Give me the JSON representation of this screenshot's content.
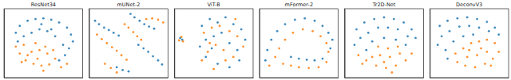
{
  "chart_data": [
    {
      "type": "scatter",
      "title": "ResNet34",
      "xlim": [
        -100,
        100
      ],
      "ylim": [
        -100,
        100
      ],
      "tick_labels": false,
      "marker": "circle",
      "series": [
        {
          "color": "#1f77b4",
          "x": [
            -60,
            -40,
            -20,
            0,
            20,
            40,
            60,
            70,
            75,
            65,
            50,
            30,
            10,
            -10,
            -30,
            -50,
            -65,
            -70,
            55,
            40,
            20,
            -5
          ],
          "values": [
            50,
            65,
            70,
            72,
            68,
            60,
            45,
            25,
            5,
            -15,
            -5,
            20,
            35,
            40,
            30,
            20,
            5,
            30,
            -35,
            -50,
            40,
            55
          ]
        },
        {
          "color": "#ff7f0e",
          "x": [
            -70,
            -60,
            -45,
            -25,
            -5,
            15,
            30,
            10,
            -10,
            -30,
            -50,
            -40,
            -15,
            5,
            25,
            45,
            -55,
            -20,
            0,
            60
          ],
          "values": [
            -10,
            -30,
            -50,
            -60,
            -65,
            -62,
            -45,
            -30,
            -20,
            -25,
            -5,
            -35,
            -45,
            -10,
            -20,
            -70,
            -55,
            0,
            -80,
            -60
          ]
        }
      ]
    },
    {
      "type": "scatter",
      "title": "mUNet-2",
      "xlim": [
        -100,
        100
      ],
      "ylim": [
        -100,
        100
      ],
      "tick_labels": false,
      "marker": "circle",
      "series": [
        {
          "color": "#1f77b4",
          "x": [
            -85,
            -75,
            -62,
            -50,
            -38,
            -25,
            5,
            15,
            28,
            40,
            52,
            65,
            25,
            38,
            50,
            62,
            75,
            85,
            -30,
            -15,
            0
          ],
          "values": [
            65,
            55,
            45,
            38,
            30,
            22,
            85,
            75,
            65,
            55,
            48,
            42,
            -5,
            -15,
            -25,
            -38,
            -50,
            -62,
            -70,
            -78,
            -82
          ]
        },
        {
          "color": "#ff7f0e",
          "x": [
            -80,
            -68,
            -55,
            -42,
            -30,
            -18,
            -5,
            -10,
            0,
            12,
            22,
            32,
            45,
            60,
            75,
            88,
            -60,
            -45,
            -30
          ],
          "values": [
            25,
            12,
            0,
            -12,
            -22,
            -35,
            -48,
            55,
            45,
            32,
            20,
            10,
            70,
            72,
            68,
            60,
            -60,
            -72,
            -85
          ]
        }
      ]
    },
    {
      "type": "scatter",
      "title": "ViT-B",
      "xlim": [
        -100,
        100
      ],
      "ylim": [
        -100,
        100
      ],
      "tick_labels": false,
      "marker": "circle",
      "series": [
        {
          "color": "#1f77b4",
          "x": [
            -85,
            -80,
            -30,
            -10,
            10,
            30,
            50,
            70,
            80,
            60,
            40,
            20,
            0,
            -20,
            -35,
            -20,
            10,
            40,
            65,
            -5
          ],
          "values": [
            15,
            10,
            50,
            70,
            60,
            75,
            55,
            40,
            10,
            -20,
            0,
            30,
            20,
            10,
            -10,
            -40,
            -60,
            -70,
            -50,
            -15
          ]
        },
        {
          "color": "#ff7f0e",
          "x": [
            -88,
            -82,
            -78,
            -25,
            -5,
            15,
            40,
            60,
            75,
            50,
            25,
            5,
            -15,
            -30,
            0,
            30,
            55,
            -10
          ],
          "values": [
            8,
            18,
            5,
            30,
            45,
            50,
            35,
            20,
            -10,
            -40,
            -20,
            -5,
            -25,
            -50,
            -75,
            -50,
            70,
            0
          ]
        }
      ]
    },
    {
      "type": "scatter",
      "title": "mFormer-2",
      "xlim": [
        -100,
        100
      ],
      "ylim": [
        -100,
        100
      ],
      "tick_labels": false,
      "marker": "circle",
      "series": [
        {
          "color": "#1f77b4",
          "x": [
            -85,
            -80,
            -70,
            -55,
            -35,
            -10,
            15,
            40,
            60,
            75,
            85,
            80,
            -20,
            0,
            20,
            40,
            60
          ],
          "values": [
            -50,
            -20,
            10,
            35,
            55,
            68,
            72,
            65,
            50,
            30,
            10,
            -15,
            -40,
            -45,
            -48,
            -50,
            -45
          ]
        },
        {
          "color": "#ff7f0e",
          "x": [
            -75,
            -60,
            -50,
            -35,
            -15,
            10,
            35,
            55,
            70,
            75,
            -40,
            -20,
            0,
            25,
            50,
            70
          ],
          "values": [
            -65,
            -40,
            -15,
            10,
            30,
            40,
            35,
            20,
            0,
            -25,
            -60,
            -65,
            -70,
            -72,
            -70,
            -55
          ]
        }
      ]
    },
    {
      "type": "scatter",
      "title": "Tr2D-Net",
      "xlim": [
        -100,
        100
      ],
      "ylim": [
        -100,
        100
      ],
      "tick_labels": false,
      "marker": "circle",
      "series": [
        {
          "color": "#1f77b4",
          "x": [
            -70,
            -50,
            -25,
            0,
            25,
            50,
            70,
            80,
            60,
            35,
            10,
            -15,
            -40,
            -60,
            -75,
            -30,
            0,
            30,
            55,
            -45
          ],
          "values": [
            40,
            60,
            70,
            75,
            70,
            60,
            40,
            15,
            20,
            40,
            45,
            45,
            30,
            15,
            -5,
            5,
            15,
            10,
            -5,
            -20
          ]
        },
        {
          "color": "#ff7f0e",
          "x": [
            -65,
            -45,
            -20,
            5,
            30,
            55,
            70,
            40,
            15,
            -10,
            -30,
            -15,
            10,
            35,
            -55,
            20,
            0
          ],
          "values": [
            -35,
            -50,
            -65,
            -72,
            -65,
            -50,
            -30,
            -30,
            -40,
            -35,
            -40,
            -10,
            -15,
            -10,
            -60,
            -85,
            -55
          ]
        }
      ]
    },
    {
      "type": "scatter",
      "title": "DeconvV3",
      "xlim": [
        -100,
        100
      ],
      "ylim": [
        -100,
        100
      ],
      "tick_labels": false,
      "marker": "circle",
      "series": [
        {
          "color": "#1f77b4",
          "x": [
            -75,
            -55,
            -30,
            -5,
            20,
            45,
            65,
            75,
            50,
            25,
            0,
            -25,
            -50,
            -70,
            -80,
            -60,
            -40,
            -15,
            10,
            -55
          ],
          "values": [
            50,
            65,
            72,
            75,
            70,
            62,
            45,
            25,
            35,
            45,
            50,
            48,
            35,
            20,
            -5,
            -20,
            5,
            20,
            25,
            -45
          ]
        },
        {
          "color": "#ff7f0e",
          "x": [
            -35,
            -15,
            5,
            25,
            45,
            65,
            75,
            60,
            40,
            15,
            -10,
            -30,
            -5,
            20,
            45,
            30,
            0,
            55
          ],
          "values": [
            -30,
            -15,
            0,
            5,
            10,
            0,
            -25,
            -45,
            -60,
            -70,
            -65,
            -55,
            -40,
            -35,
            -25,
            -15,
            -20,
            -65
          ]
        }
      ]
    }
  ]
}
